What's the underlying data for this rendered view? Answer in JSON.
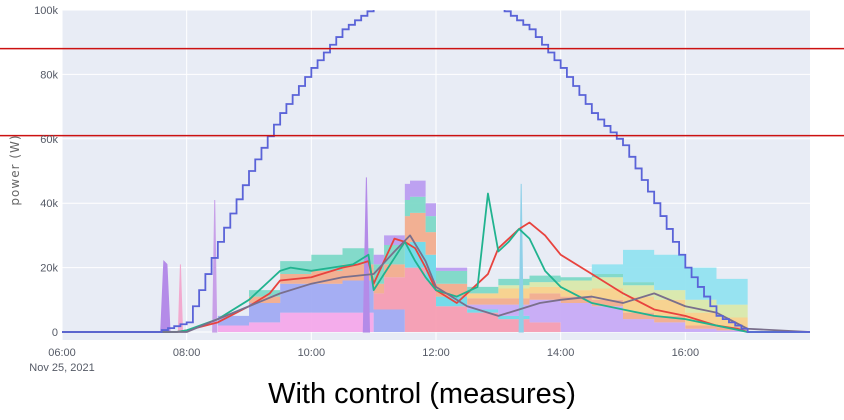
{
  "caption": "With control (measures)",
  "chart_data": {
    "type": "area",
    "title": "",
    "xlabel": "",
    "ylabel": "power (W)",
    "x_range": [
      "06:00",
      "18:00"
    ],
    "ylim": [
      0,
      100000
    ],
    "x_ticks": [
      "06:00",
      "08:00",
      "10:00",
      "12:00",
      "14:00",
      "16:00"
    ],
    "x_first_sublabel": "Nov 25, 2021",
    "y_ticks": [
      0,
      20000,
      40000,
      60000,
      80000,
      100000
    ],
    "y_tick_labels": [
      "0",
      "20k",
      "40k",
      "60k",
      "80k",
      "100k"
    ],
    "grid": true,
    "plot_background": "#e8ecf5",
    "stacked_series": [
      {
        "color": "#f4a6e9",
        "x": [
          "06:00",
          "07:45",
          "08:00",
          "08:30",
          "09:00",
          "09:30",
          "10:00",
          "10:30",
          "10:55",
          "11:00",
          "11:10",
          "11:30",
          "11:35",
          "11:50",
          "12:00",
          "12:30",
          "13:00",
          "13:30",
          "14:00",
          "14:30",
          "15:00",
          "15:30",
          "16:00",
          "16:30",
          "17:00",
          "17:05"
        ],
        "values": [
          0,
          0,
          0,
          2000,
          3000,
          6000,
          6000,
          6000,
          6000,
          0,
          0,
          0,
          0,
          0,
          0,
          0,
          0,
          0,
          0,
          0,
          0,
          0,
          0,
          0,
          0,
          0
        ]
      },
      {
        "color": "#9ea8f2",
        "x": [
          "06:00",
          "07:45",
          "08:00",
          "08:30",
          "09:00",
          "09:30",
          "10:00",
          "10:30",
          "10:55",
          "11:00",
          "11:10",
          "11:30",
          "11:35",
          "11:50",
          "12:00",
          "12:30",
          "13:00",
          "13:30",
          "14:00",
          "14:30",
          "15:00",
          "15:30",
          "16:00",
          "16:30",
          "17:00",
          "17:05"
        ],
        "values": [
          0,
          0,
          0,
          3000,
          6000,
          9000,
          9000,
          10000,
          10000,
          7000,
          7000,
          0,
          0,
          0,
          0,
          0,
          0,
          0,
          0,
          0,
          0,
          0,
          0,
          0,
          0,
          0
        ]
      },
      {
        "color": "#f59ab0",
        "x": [
          "06:00",
          "07:45",
          "08:00",
          "08:30",
          "09:00",
          "09:30",
          "10:00",
          "10:30",
          "10:55",
          "11:00",
          "11:10",
          "11:30",
          "11:35",
          "11:50",
          "12:00",
          "12:30",
          "13:00",
          "13:30",
          "14:00",
          "14:30",
          "15:00",
          "15:30",
          "16:00",
          "16:30",
          "17:00",
          "17:05"
        ],
        "values": [
          0,
          0,
          0,
          0,
          0,
          0,
          0,
          0,
          0,
          5000,
          10000,
          20000,
          20000,
          16000,
          8000,
          6000,
          4000,
          3000,
          0,
          0,
          0,
          0,
          0,
          0,
          0,
          0
        ]
      },
      {
        "color": "#6ad9e8",
        "x": [
          "06:00",
          "07:45",
          "08:00",
          "08:30",
          "09:00",
          "09:30",
          "10:00",
          "10:30",
          "10:55",
          "11:00",
          "11:10",
          "11:30",
          "11:35",
          "11:50",
          "12:00",
          "12:30",
          "13:00",
          "13:30",
          "14:00",
          "14:30",
          "15:00",
          "15:30",
          "16:00",
          "16:30",
          "17:00",
          "17:05"
        ],
        "values": [
          0,
          0,
          0,
          0,
          0,
          0,
          0,
          0,
          0,
          0,
          0,
          7000,
          8000,
          8000,
          3000,
          1000,
          1000,
          0,
          0,
          0,
          0,
          0,
          0,
          0,
          0,
          0
        ]
      },
      {
        "color": "#c5a8f5",
        "x": [
          "06:00",
          "07:45",
          "08:00",
          "08:30",
          "09:00",
          "09:30",
          "10:00",
          "10:30",
          "10:55",
          "11:00",
          "11:10",
          "11:30",
          "11:35",
          "11:50",
          "12:00",
          "12:30",
          "13:00",
          "13:30",
          "14:00",
          "14:30",
          "15:00",
          "15:30",
          "16:00",
          "16:30",
          "17:00",
          "17:05"
        ],
        "values": [
          0,
          0,
          0,
          0,
          0,
          0,
          0,
          0,
          0,
          0,
          0,
          0,
          0,
          0,
          0,
          1500,
          3500,
          7000,
          9000,
          8000,
          4000,
          3000,
          1000,
          500,
          0,
          0
        ]
      },
      {
        "color": "#f2aa8a",
        "x": [
          "06:00",
          "07:45",
          "08:00",
          "08:30",
          "09:00",
          "09:30",
          "10:00",
          "10:30",
          "10:55",
          "11:00",
          "11:10",
          "11:30",
          "11:35",
          "11:50",
          "12:00",
          "12:30",
          "13:00",
          "13:30",
          "14:00",
          "14:30",
          "15:00",
          "15:30",
          "16:00",
          "16:30",
          "17:00",
          "17:05"
        ],
        "values": [
          0,
          0,
          0,
          0,
          2000,
          3000,
          4000,
          5000,
          5000,
          3000,
          4000,
          9000,
          9000,
          7000,
          4000,
          2000,
          2000,
          2000,
          2000,
          2000,
          2000,
          2000,
          1000,
          1000,
          0,
          0
        ]
      },
      {
        "color": "#f7d088",
        "x": [
          "06:00",
          "07:45",
          "08:00",
          "08:30",
          "09:00",
          "09:30",
          "10:00",
          "10:30",
          "10:55",
          "11:00",
          "11:10",
          "11:30",
          "11:35",
          "11:50",
          "12:00",
          "12:30",
          "13:00",
          "13:30",
          "14:00",
          "14:30",
          "15:00",
          "15:30",
          "16:00",
          "16:30",
          "17:00",
          "17:05"
        ],
        "values": [
          0,
          0,
          0,
          0,
          0,
          0,
          0,
          0,
          0,
          0,
          0,
          0,
          0,
          0,
          0,
          1500,
          3000,
          2000,
          2000,
          3500,
          5000,
          5000,
          4000,
          3000,
          0,
          0
        ]
      },
      {
        "color": "#d8e8a8",
        "x": [
          "06:00",
          "07:45",
          "08:00",
          "08:30",
          "09:00",
          "09:30",
          "10:00",
          "10:30",
          "10:55",
          "11:00",
          "11:10",
          "11:30",
          "11:35",
          "11:50",
          "12:00",
          "12:30",
          "13:00",
          "13:30",
          "14:00",
          "14:30",
          "15:00",
          "15:30",
          "16:00",
          "16:30",
          "17:00",
          "17:05"
        ],
        "values": [
          0,
          0,
          0,
          0,
          0,
          0,
          0,
          0,
          0,
          0,
          0,
          0,
          0,
          0,
          0,
          0,
          1000,
          1500,
          3000,
          3500,
          3500,
          3000,
          4000,
          4000,
          0,
          0
        ]
      },
      {
        "color": "#7ad8c6",
        "x": [
          "06:00",
          "07:45",
          "08:00",
          "08:30",
          "09:00",
          "09:30",
          "10:00",
          "10:30",
          "10:55",
          "11:00",
          "11:10",
          "11:30",
          "11:35",
          "11:50",
          "12:00",
          "12:30",
          "13:00",
          "13:30",
          "14:00",
          "14:30",
          "15:00",
          "15:30",
          "16:00",
          "16:30",
          "17:00",
          "17:05"
        ],
        "values": [
          0,
          0,
          0,
          0,
          2000,
          4000,
          5000,
          5000,
          5000,
          6000,
          6000,
          5000,
          5000,
          5000,
          4000,
          2000,
          2000,
          2000,
          1000,
          1000,
          1000,
          0,
          0,
          0,
          0,
          0
        ]
      },
      {
        "color": "#8fe2f0",
        "x": [
          "06:00",
          "07:45",
          "08:00",
          "08:30",
          "09:00",
          "09:30",
          "10:00",
          "10:30",
          "10:55",
          "11:00",
          "11:10",
          "11:30",
          "11:35",
          "11:50",
          "12:00",
          "12:30",
          "13:00",
          "13:30",
          "14:00",
          "14:30",
          "15:00",
          "15:30",
          "16:00",
          "16:30",
          "17:00",
          "17:05"
        ],
        "values": [
          0,
          0,
          0,
          0,
          0,
          0,
          0,
          0,
          0,
          0,
          0,
          0,
          0,
          0,
          0,
          0,
          0,
          0,
          0,
          3000,
          10000,
          11000,
          10000,
          8000,
          0,
          0
        ]
      },
      {
        "color": "#b89af0",
        "x": [
          "06:00",
          "07:45",
          "08:00",
          "08:30",
          "09:00",
          "09:30",
          "10:00",
          "10:30",
          "10:55",
          "11:00",
          "11:10",
          "11:30",
          "11:35",
          "11:50",
          "12:00",
          "12:30",
          "13:00",
          "13:30",
          "14:00",
          "14:30",
          "15:00",
          "15:30",
          "16:00",
          "16:30",
          "17:00",
          "17:05"
        ],
        "values": [
          0,
          0,
          0,
          0,
          0,
          0,
          0,
          0,
          0,
          3000,
          3000,
          5000,
          5000,
          4000,
          1000,
          0,
          0,
          0,
          0,
          0,
          0,
          0,
          0,
          0,
          0,
          0
        ]
      }
    ],
    "spikes": [
      {
        "color": "#b48be8",
        "x": [
          "07:35",
          "07:38",
          "07:41",
          "07:44"
        ],
        "values": [
          0,
          22000,
          21000,
          0
        ]
      },
      {
        "color": "#c8a0e8",
        "x": [
          "08:25",
          "08:27",
          "08:29"
        ],
        "values": [
          0,
          41000,
          0
        ]
      },
      {
        "color": "#f2aacf",
        "x": [
          "07:52",
          "07:54",
          "07:56"
        ],
        "values": [
          0,
          21000,
          0
        ]
      },
      {
        "color": "#b48be8",
        "x": [
          "10:50",
          "10:53",
          "10:56"
        ],
        "values": [
          0,
          48000,
          0
        ]
      },
      {
        "color": "#8fd0e8",
        "x": [
          "13:20",
          "13:22",
          "13:24"
        ],
        "values": [
          0,
          46000,
          0
        ]
      }
    ],
    "lines": [
      {
        "color": "#e8433e",
        "x": [
          "06:00",
          "07:50",
          "08:00",
          "08:30",
          "09:00",
          "09:20",
          "09:30",
          "10:00",
          "10:30",
          "10:45",
          "10:55",
          "11:00",
          "11:10",
          "11:20",
          "11:30",
          "11:40",
          "11:50",
          "12:00",
          "12:20",
          "12:30",
          "12:50",
          "13:00",
          "13:20",
          "13:30",
          "13:45",
          "14:00",
          "14:30",
          "15:00",
          "15:30",
          "16:00",
          "16:30",
          "16:50",
          "17:00"
        ],
        "values": [
          0,
          0,
          500,
          3000,
          8000,
          12000,
          16000,
          17000,
          20000,
          21000,
          22000,
          15000,
          22000,
          29000,
          28000,
          26000,
          20000,
          13000,
          9000,
          12000,
          18000,
          26000,
          32000,
          34000,
          30000,
          24000,
          18000,
          12000,
          7000,
          5000,
          2000,
          1000,
          0
        ]
      },
      {
        "color": "#21b38f",
        "x": [
          "06:00",
          "07:50",
          "08:00",
          "08:30",
          "09:00",
          "09:20",
          "09:30",
          "09:40",
          "10:00",
          "10:20",
          "10:40",
          "10:55",
          "11:00",
          "11:10",
          "11:20",
          "11:30",
          "11:40",
          "11:50",
          "12:00",
          "12:20",
          "12:40",
          "12:50",
          "12:55",
          "13:00",
          "13:10",
          "13:20",
          "13:30",
          "13:45",
          "14:00",
          "14:30",
          "15:00",
          "15:30",
          "16:00",
          "16:30",
          "16:45",
          "17:00",
          "18:00"
        ],
        "values": [
          0,
          0,
          500,
          4000,
          10000,
          16000,
          19000,
          20000,
          19000,
          20000,
          21000,
          24000,
          13000,
          18000,
          23000,
          28000,
          22000,
          17000,
          13000,
          11000,
          14000,
          43000,
          34000,
          25000,
          28000,
          32000,
          29000,
          19000,
          14000,
          9000,
          7000,
          5000,
          4000,
          2000,
          1000,
          0,
          0
        ]
      },
      {
        "color": "#7a6f8c",
        "x": [
          "06:00",
          "08:00",
          "08:30",
          "09:00",
          "09:30",
          "10:00",
          "10:30",
          "11:00",
          "11:20",
          "11:35",
          "11:50",
          "12:00",
          "12:30",
          "13:00",
          "13:20",
          "13:40",
          "14:00",
          "14:30",
          "15:00",
          "15:30",
          "16:00",
          "16:30",
          "17:00",
          "18:00"
        ],
        "values": [
          0,
          0,
          4000,
          8000,
          12000,
          15000,
          17000,
          18000,
          25000,
          30000,
          22000,
          14000,
          8000,
          5000,
          7000,
          9000,
          10000,
          11000,
          9000,
          12000,
          8000,
          6000,
          1000,
          0
        ]
      },
      {
        "color": "#5a63d8",
        "step": true,
        "x": [
          "06:00",
          "07:30",
          "08:00",
          "08:30",
          "09:00",
          "09:30",
          "10:00",
          "10:30",
          "11:00",
          "11:30",
          "12:00",
          "12:30",
          "13:00",
          "13:30",
          "14:00",
          "14:30",
          "15:00",
          "15:30",
          "16:00",
          "16:30",
          "17:00",
          "17:30",
          "18:00"
        ],
        "values": [
          0,
          0,
          3000,
          28000,
          50000,
          68000,
          82000,
          94000,
          101000,
          106000,
          108000,
          106000,
          101000,
          94000,
          82000,
          68000,
          58000,
          40000,
          20000,
          5000,
          0,
          0,
          0
        ]
      }
    ],
    "reference_lines": [
      {
        "color": "#cc1111",
        "y": 88000
      },
      {
        "color": "#cc1111",
        "y": 61000
      }
    ]
  }
}
